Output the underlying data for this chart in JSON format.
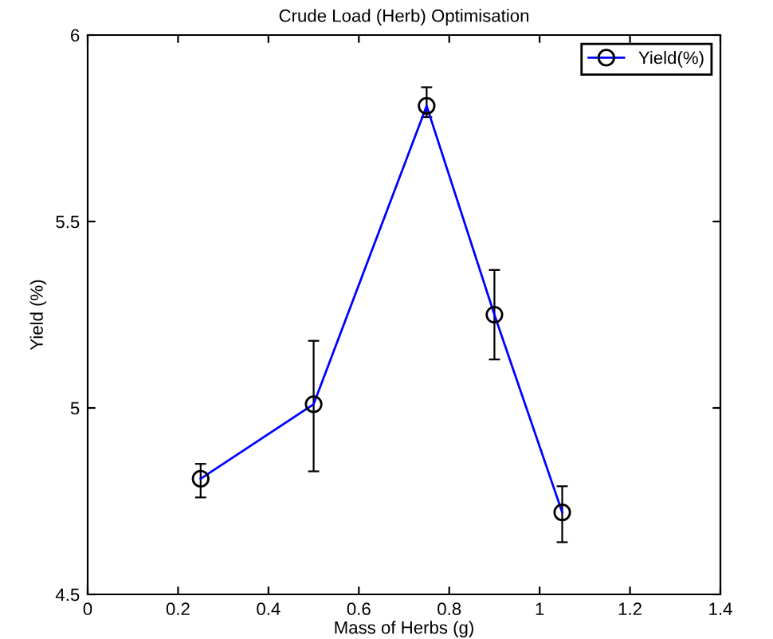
{
  "chart_data": {
    "type": "line",
    "title": "Crude Load (Herb) Optimisation",
    "xlabel": "Mass of Herbs (g)",
    "ylabel": "Yield (%)",
    "x": [
      0.25,
      0.5,
      0.75,
      0.9,
      1.05
    ],
    "series": [
      {
        "name": "Yield(%)",
        "color": "#0000ff",
        "values": [
          4.81,
          5.01,
          5.81,
          5.25,
          4.72
        ],
        "errors": [
          [
            4.76,
            4.85
          ],
          [
            4.83,
            5.18
          ],
          [
            5.78,
            5.86
          ],
          [
            5.13,
            5.37
          ],
          [
            4.64,
            4.79
          ]
        ]
      }
    ],
    "xlim": [
      0,
      1.4
    ],
    "xticks": [
      0,
      0.2,
      0.4,
      0.6,
      0.8,
      1,
      1.2,
      1.4
    ],
    "ylim": [
      4.5,
      6
    ],
    "yticks": [
      4.5,
      5,
      5.5,
      6
    ],
    "marker": "circle",
    "line_style": "solid",
    "grid": false,
    "legend": "top right"
  }
}
